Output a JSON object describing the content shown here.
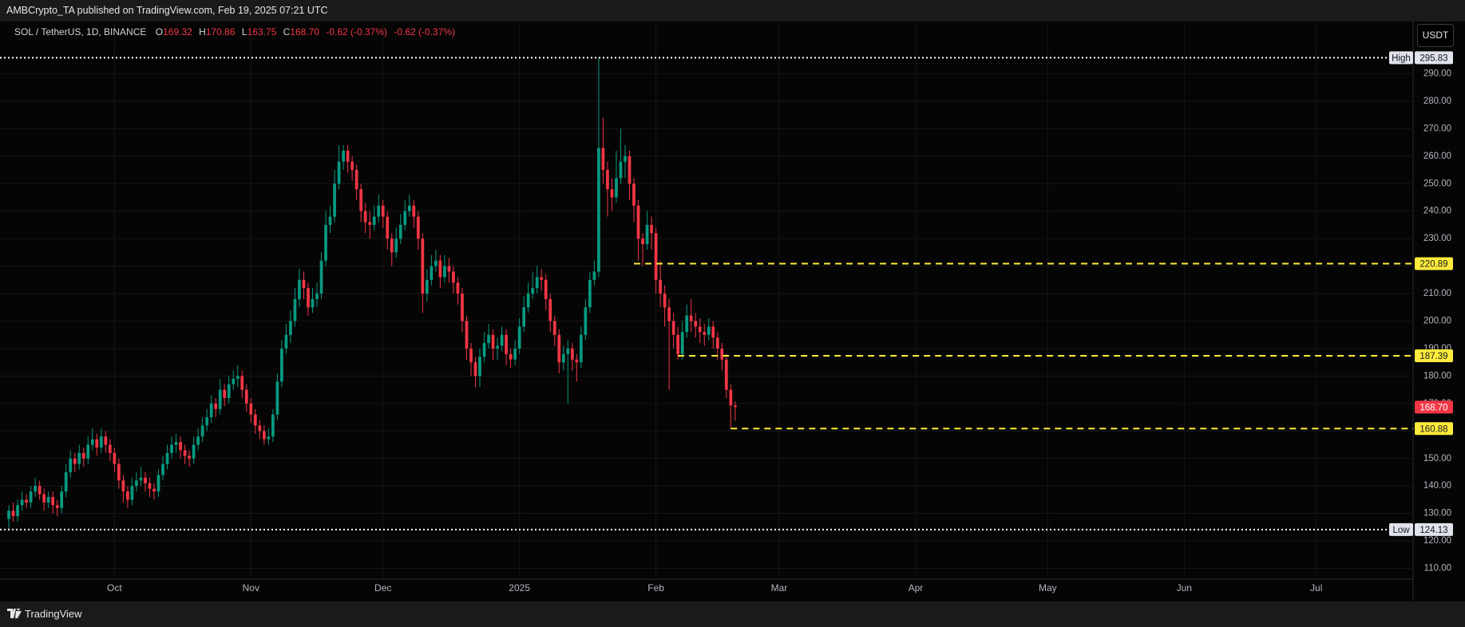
{
  "publisher": "AMBCrypto_TA published on TradingView.com, Feb 19, 2025 07:21 UTC",
  "legend": {
    "symbol": "SOL / TetherUS, 1D, BINANCE",
    "fields": [
      {
        "key": "O",
        "value": "169.32"
      },
      {
        "key": "H",
        "value": "170.86"
      },
      {
        "key": "L",
        "value": "163.75"
      },
      {
        "key": "C",
        "value": "168.70"
      }
    ],
    "changes": [
      "-0.62 (-0.37%)",
      "-0.62 (-0.37%)"
    ]
  },
  "currency_button": "USDT",
  "footer": "TradingView",
  "chart_data": {
    "type": "candlestick",
    "up_color": "#089981",
    "down_color": "#f23645",
    "grid": true,
    "xlim": [
      -2,
      319
    ],
    "ylim": [
      106.1,
      308.7
    ],
    "xticks": [
      {
        "value": 24,
        "label": "Oct"
      },
      {
        "value": 55,
        "label": "Nov"
      },
      {
        "value": 85,
        "label": "Dec"
      },
      {
        "value": 116,
        "label": "2025"
      },
      {
        "value": 147,
        "label": "Feb"
      },
      {
        "value": 175,
        "label": "Mar"
      },
      {
        "value": 206,
        "label": "Apr"
      },
      {
        "value": 236,
        "label": "May"
      },
      {
        "value": 267,
        "label": "Jun"
      },
      {
        "value": 297,
        "label": "Jul"
      }
    ],
    "yticks": [
      {
        "value": 110,
        "label": "110.00"
      },
      {
        "value": 120,
        "label": "120.00"
      },
      {
        "value": 130,
        "label": "130.00"
      },
      {
        "value": 140,
        "label": "140.00"
      },
      {
        "value": 150,
        "label": "150.00"
      },
      {
        "value": 160,
        "label": "160.00"
      },
      {
        "value": 170,
        "label": "170.00"
      },
      {
        "value": 180,
        "label": "180.00"
      },
      {
        "value": 190,
        "label": "190.00"
      },
      {
        "value": 200,
        "label": "200.00"
      },
      {
        "value": 210,
        "label": "210.00"
      },
      {
        "value": 220,
        "label": "220.00"
      },
      {
        "value": 230,
        "label": "230.00"
      },
      {
        "value": 240,
        "label": "240.00"
      },
      {
        "value": 250,
        "label": "250.00"
      },
      {
        "value": 260,
        "label": "260.00"
      },
      {
        "value": 270,
        "label": "270.00"
      },
      {
        "value": 280,
        "label": "280.00"
      },
      {
        "value": 290,
        "label": "290.00"
      }
    ],
    "levels": [
      {
        "name": "High",
        "value": 295.83,
        "style": "dotted",
        "color": "#ffffff"
      },
      {
        "name": "Low",
        "value": 124.13,
        "style": "dotted",
        "color": "#ffffff"
      },
      {
        "value": 220.89,
        "style": "dashed",
        "color": "#ffeb3b",
        "x_start": 142
      },
      {
        "value": 187.39,
        "style": "dashed",
        "color": "#ffeb3b",
        "x_start": 152
      },
      {
        "value": 160.88,
        "style": "dashed",
        "color": "#ffeb3b",
        "x_start": 164
      }
    ],
    "last_price": {
      "value": 168.7,
      "label": "168.70",
      "color": "#f23645"
    },
    "candles": [
      [
        128,
        133,
        124.13,
        131
      ],
      [
        131,
        134,
        127,
        129
      ],
      [
        129,
        135,
        127,
        133
      ],
      [
        133,
        138,
        131,
        135
      ],
      [
        135,
        137,
        132,
        134
      ],
      [
        134,
        140,
        132,
        138
      ],
      [
        138,
        143,
        136,
        140
      ],
      [
        140,
        142,
        135,
        137
      ],
      [
        137,
        139,
        131,
        134
      ],
      [
        134,
        138,
        132,
        136
      ],
      [
        136,
        138,
        130,
        133
      ],
      [
        133,
        135,
        129,
        132
      ],
      [
        132,
        140,
        130,
        138
      ],
      [
        138,
        148,
        136,
        145
      ],
      [
        145,
        153,
        143,
        150
      ],
      [
        150,
        152,
        145,
        148
      ],
      [
        148,
        155,
        146,
        152
      ],
      [
        152,
        154,
        147,
        150
      ],
      [
        150,
        158,
        148,
        155
      ],
      [
        155,
        161,
        153,
        157
      ],
      [
        157,
        159,
        151,
        154
      ],
      [
        154,
        161,
        152,
        158
      ],
      [
        158,
        160,
        152,
        155
      ],
      [
        155,
        157,
        149,
        152
      ],
      [
        152,
        154,
        145,
        148
      ],
      [
        148,
        150,
        139,
        142
      ],
      [
        142,
        144,
        134,
        138
      ],
      [
        138,
        140,
        132,
        135
      ],
      [
        135,
        143,
        133,
        140
      ],
      [
        140,
        145,
        138,
        142
      ],
      [
        142,
        147,
        140,
        143
      ],
      [
        143,
        145,
        138,
        141
      ],
      [
        141,
        143,
        136,
        139
      ],
      [
        139,
        141,
        135,
        138
      ],
      [
        138,
        146,
        136,
        144
      ],
      [
        144,
        151,
        142,
        148
      ],
      [
        148,
        155,
        146,
        152
      ],
      [
        152,
        158,
        150,
        155
      ],
      [
        155,
        159,
        152,
        156
      ],
      [
        156,
        158,
        150,
        153
      ],
      [
        153,
        155,
        148,
        151
      ],
      [
        151,
        153,
        147,
        150
      ],
      [
        150,
        158,
        148,
        155
      ],
      [
        155,
        161,
        153,
        158
      ],
      [
        158,
        165,
        156,
        162
      ],
      [
        162,
        168,
        160,
        165
      ],
      [
        165,
        173,
        163,
        170
      ],
      [
        170,
        172,
        165,
        168
      ],
      [
        168,
        179,
        166,
        175
      ],
      [
        175,
        177,
        169,
        172
      ],
      [
        172,
        180,
        170,
        177
      ],
      [
        177,
        182,
        175,
        179
      ],
      [
        179,
        184,
        176,
        180
      ],
      [
        180,
        182,
        172,
        175
      ],
      [
        175,
        177,
        167,
        170
      ],
      [
        170,
        172,
        163,
        166
      ],
      [
        166,
        168,
        159,
        162
      ],
      [
        162,
        164,
        157,
        160
      ],
      [
        160,
        162,
        155,
        157
      ],
      [
        157,
        161,
        155,
        158
      ],
      [
        158,
        168,
        156,
        166
      ],
      [
        166,
        181,
        164,
        178
      ],
      [
        178,
        193,
        176,
        190
      ],
      [
        190,
        199,
        188,
        195
      ],
      [
        195,
        204,
        192,
        200
      ],
      [
        200,
        212,
        198,
        208
      ],
      [
        208,
        219,
        205,
        215
      ],
      [
        215,
        218,
        208,
        212
      ],
      [
        212,
        214,
        202,
        205
      ],
      [
        205,
        212,
        203,
        208
      ],
      [
        208,
        214,
        205,
        210
      ],
      [
        210,
        225,
        208,
        222
      ],
      [
        222,
        240,
        220,
        235
      ],
      [
        235,
        242,
        232,
        238
      ],
      [
        238,
        255,
        236,
        250
      ],
      [
        250,
        264,
        248,
        258
      ],
      [
        258,
        264,
        255,
        262
      ],
      [
        262,
        264,
        254,
        258
      ],
      [
        258,
        260,
        251,
        255
      ],
      [
        255,
        257,
        244,
        248
      ],
      [
        248,
        250,
        236,
        240
      ],
      [
        240,
        243,
        232,
        236
      ],
      [
        236,
        240,
        230,
        235
      ],
      [
        235,
        242,
        233,
        238
      ],
      [
        238,
        246,
        236,
        242
      ],
      [
        242,
        244,
        234,
        238
      ],
      [
        238,
        240,
        226,
        230
      ],
      [
        230,
        232,
        220,
        225
      ],
      [
        225,
        234,
        223,
        230
      ],
      [
        230,
        239,
        228,
        235
      ],
      [
        235,
        244,
        233,
        240
      ],
      [
        240,
        246,
        238,
        242
      ],
      [
        242,
        244,
        234,
        238
      ],
      [
        238,
        240,
        226,
        230
      ],
      [
        230,
        232,
        203,
        210
      ],
      [
        210,
        219,
        207,
        215
      ],
      [
        215,
        224,
        213,
        220
      ],
      [
        220,
        226,
        218,
        222
      ],
      [
        222,
        224,
        212,
        216
      ],
      [
        216,
        224,
        214,
        220
      ],
      [
        220,
        223,
        214,
        218
      ],
      [
        218,
        220,
        210,
        214
      ],
      [
        214,
        216,
        206,
        210
      ],
      [
        210,
        212,
        196,
        200
      ],
      [
        200,
        202,
        186,
        190
      ],
      [
        190,
        192,
        180,
        185
      ],
      [
        185,
        187,
        176,
        180
      ],
      [
        180,
        190,
        176,
        187
      ],
      [
        187,
        196,
        185,
        192
      ],
      [
        192,
        199,
        190,
        195
      ],
      [
        195,
        197,
        186,
        190
      ],
      [
        190,
        194,
        186,
        191
      ],
      [
        191,
        198,
        189,
        195
      ],
      [
        195,
        197,
        184,
        188
      ],
      [
        188,
        190,
        183,
        186
      ],
      [
        186,
        193,
        184,
        190
      ],
      [
        190,
        201,
        188,
        198
      ],
      [
        198,
        209,
        196,
        205
      ],
      [
        205,
        214,
        203,
        210
      ],
      [
        210,
        218,
        208,
        212
      ],
      [
        212,
        220,
        210,
        216
      ],
      [
        216,
        219,
        211,
        215
      ],
      [
        215,
        217,
        204,
        208
      ],
      [
        208,
        210,
        196,
        200
      ],
      [
        200,
        202,
        191,
        195
      ],
      [
        195,
        197,
        181,
        185
      ],
      [
        185,
        191,
        182,
        188
      ],
      [
        188,
        193,
        170,
        190
      ],
      [
        190,
        192,
        182,
        186
      ],
      [
        186,
        188,
        178,
        185
      ],
      [
        185,
        198,
        183,
        195
      ],
      [
        195,
        208,
        193,
        205
      ],
      [
        205,
        218,
        203,
        215
      ],
      [
        215,
        222,
        213,
        218
      ],
      [
        218,
        295.83,
        216,
        263
      ],
      [
        263,
        274,
        250,
        255
      ],
      [
        255,
        258,
        238,
        248
      ],
      [
        248,
        252,
        240,
        245
      ],
      [
        245,
        262,
        243,
        252
      ],
      [
        252,
        270,
        250,
        258
      ],
      [
        258,
        264,
        252,
        260
      ],
      [
        260,
        262,
        244,
        250
      ],
      [
        250,
        252,
        236,
        242
      ],
      [
        242,
        244,
        222,
        230
      ],
      [
        230,
        232,
        220,
        228
      ],
      [
        228,
        240,
        226,
        235
      ],
      [
        235,
        238,
        226,
        232
      ],
      [
        232,
        234,
        210,
        215
      ],
      [
        215,
        222,
        205,
        210
      ],
      [
        210,
        213,
        198,
        205
      ],
      [
        205,
        208,
        175,
        200
      ],
      [
        200,
        203,
        190,
        195
      ],
      [
        195,
        198,
        186,
        188
      ],
      [
        188,
        200,
        186,
        196
      ],
      [
        196,
        206,
        194,
        202
      ],
      [
        202,
        208,
        196,
        200
      ],
      [
        200,
        203,
        194,
        198
      ],
      [
        198,
        201,
        192,
        196
      ],
      [
        196,
        199,
        191,
        195
      ],
      [
        195,
        201,
        193,
        198
      ],
      [
        198,
        200,
        190,
        194
      ],
      [
        194,
        196,
        186,
        190
      ],
      [
        190,
        192,
        182,
        186
      ],
      [
        186,
        188,
        172,
        175
      ],
      [
        175,
        177,
        160.88,
        169.32
      ],
      [
        169.32,
        170.86,
        163.75,
        168.7
      ]
    ]
  }
}
